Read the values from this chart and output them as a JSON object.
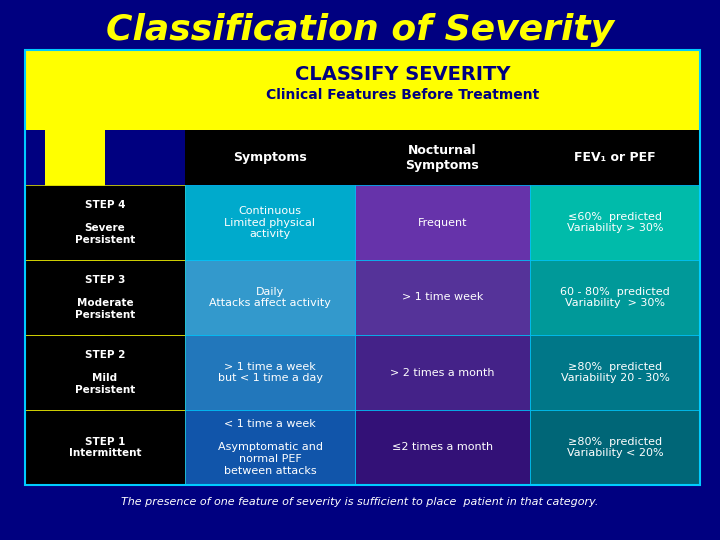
{
  "title": "Classification of Severity",
  "title_color": "#FFFF00",
  "bg_color": "#000080",
  "header_title": "CLASSIFY SEVERITY",
  "header_subtitle": "Clinical Features Before Treatment",
  "header_bg": "#FFFF00",
  "header_title_color": "#000080",
  "header_subtitle_color": "#000080",
  "col_headers": [
    "Symptoms",
    "Nocturnal\nSymptoms",
    "FEV₁ or PEF"
  ],
  "col_header_bg": "#000000",
  "col_header_color": "#FFFFFF",
  "step_bg": "#000000",
  "step_color": "#FFFFFF",
  "rows": [
    {
      "step": "STEP 4\n\nSevere\nPersistent",
      "symptoms": "Continuous\nLimited physical\nactivity",
      "nocturnal": "Frequent",
      "fev": "≤60%  predicted\nVariability > 30%",
      "symptoms_bg": "#00AACC",
      "nocturnal_bg": "#6633AA",
      "fev_bg": "#00BBAA"
    },
    {
      "step": "STEP 3\n\nModerate\nPersistent",
      "symptoms": "Daily\nAttacks affect activity",
      "nocturnal": "> 1 time week",
      "fev": "60 - 80%  predicted\nVariability  > 30%",
      "symptoms_bg": "#3399CC",
      "nocturnal_bg": "#553399",
      "fev_bg": "#009999"
    },
    {
      "step": "STEP 2\n\nMild\nPersistent",
      "symptoms": "> 1 time a week\nbut < 1 time a day",
      "nocturnal": "> 2 times a month",
      "fev": "≥80%  predicted\nVariability 20 - 30%",
      "symptoms_bg": "#2277BB",
      "nocturnal_bg": "#442288",
      "fev_bg": "#007788"
    },
    {
      "step": "STEP 1\nIntermittent",
      "symptoms": "< 1 time a week\n\nAsymptomatic and\nnormal PEF\nbetween attacks",
      "nocturnal": "≤2 times a month",
      "fev": "≥80%  predicted\nVariability < 20%",
      "symptoms_bg": "#1155AA",
      "nocturnal_bg": "#331177",
      "fev_bg": "#006677"
    }
  ],
  "footer": "The presence of one feature of severity is sufficient to place  patient in that category.",
  "footer_color": "#FFFFFF",
  "stair_color": "#FFFF00"
}
